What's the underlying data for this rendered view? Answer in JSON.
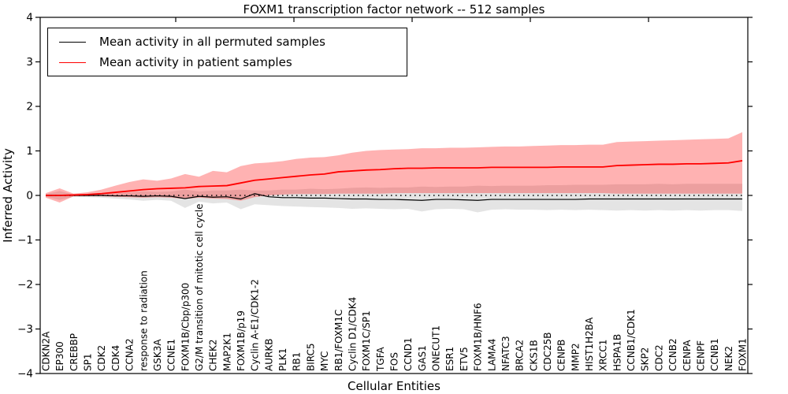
{
  "figure": {
    "title": "FOXM1 transcription factor network -- 512 samples",
    "xlabel": "Cellular Entities",
    "ylabel": "Inferred Activity"
  },
  "legend": {
    "position": "upper left",
    "entries": [
      {
        "label": "Mean activity in all permuted samples",
        "color": "#000000"
      },
      {
        "label": "Mean activity in patient samples",
        "color": "#ff0000"
      }
    ]
  },
  "colors": {
    "patient_line": "#ff0000",
    "permuted_line": "#000000",
    "patient_band": "rgba(255,0,0,0.30)",
    "permuted_band": "rgba(105,105,105,0.18)",
    "reference_dotted": "#000000",
    "axes": "#000000",
    "background": "#ffffff"
  },
  "chart_data": {
    "type": "line",
    "title": "FOXM1 transcription factor network -- 512 samples",
    "xlabel": "Cellular Entities",
    "ylabel": "Inferred Activity",
    "ylim": [
      -4,
      4
    ],
    "yticks": [
      4,
      3,
      2,
      1,
      0,
      -1,
      -2,
      -3,
      -4
    ],
    "ytick_labels": [
      "4",
      "3",
      "2",
      "1",
      "0",
      "−1",
      "−2",
      "−3",
      "−4"
    ],
    "grid": false,
    "legend_position": "upper left",
    "categories": [
      "CDKN2A",
      "EP300",
      "CREBBP",
      "SP1",
      "CDK2",
      "CDK4",
      "CCNA2",
      "response to radiation",
      "GSK3A",
      "CCNE1",
      "FOXM1B/Cbp/p300",
      "G2/M transition of mitotic cell cycle",
      "CHEK2",
      "MAP2K1",
      "FOXM1B/p19",
      "Cyclin A-E1/CDK1-2",
      "AURKB",
      "PLK1",
      "RB1",
      "BIRC5",
      "MYC",
      "RB1/FOXM1C",
      "Cyclin D1/CDK4",
      "FOXM1C/SP1",
      "TGFA",
      "FOS",
      "CCND1",
      "GAS1",
      "ONECUT1",
      "ESR1",
      "ETV5",
      "FOXM1B/HNF6",
      "LAMA4",
      "NFATC3",
      "BRCA2",
      "CKS1B",
      "CDC25B",
      "CENPB",
      "MMP2",
      "HIST1H2BA",
      "XRCC1",
      "HSPA1B",
      "CCNB1/CDK1",
      "SKP2",
      "CDC2",
      "CCNB2",
      "CENPA",
      "CENPF",
      "CCNB1",
      "NEK2",
      "FOXM1"
    ],
    "series": [
      {
        "name": "Mean activity in all permuted samples",
        "kind": "line",
        "color": "#000000",
        "values": [
          0,
          0,
          0,
          0,
          0,
          -0.01,
          -0.01,
          -0.02,
          -0.01,
          -0.02,
          -0.07,
          -0.02,
          -0.04,
          -0.03,
          -0.08,
          0.04,
          -0.03,
          -0.05,
          -0.05,
          -0.06,
          -0.06,
          -0.07,
          -0.08,
          -0.08,
          -0.09,
          -0.09,
          -0.1,
          -0.11,
          -0.09,
          -0.09,
          -0.1,
          -0.11,
          -0.09,
          -0.09,
          -0.09,
          -0.09,
          -0.09,
          -0.09,
          -0.09,
          -0.08,
          -0.08,
          -0.08,
          -0.08,
          -0.08,
          -0.08,
          -0.08,
          -0.08,
          -0.08,
          -0.08,
          -0.08,
          -0.08
        ]
      },
      {
        "name": "Mean activity in patient samples",
        "kind": "line",
        "color": "#ff0000",
        "values": [
          0,
          0,
          0.01,
          0.02,
          0.04,
          0.07,
          0.1,
          0.13,
          0.15,
          0.16,
          0.17,
          0.2,
          0.21,
          0.22,
          0.28,
          0.34,
          0.37,
          0.4,
          0.43,
          0.46,
          0.48,
          0.53,
          0.55,
          0.57,
          0.58,
          0.6,
          0.61,
          0.61,
          0.62,
          0.62,
          0.62,
          0.62,
          0.63,
          0.63,
          0.63,
          0.63,
          0.63,
          0.64,
          0.64,
          0.64,
          0.64,
          0.67,
          0.68,
          0.69,
          0.7,
          0.7,
          0.71,
          0.71,
          0.72,
          0.73,
          0.78
        ]
      },
      {
        "name": "Permuted samples spread band",
        "kind": "band",
        "color": "rgba(105,105,105,0.18)",
        "upper": [
          0.03,
          0.1,
          0.02,
          0.03,
          0.04,
          0.05,
          0.07,
          0.09,
          0.08,
          0.09,
          0.13,
          0.09,
          0.11,
          0.11,
          0.13,
          0.11,
          0.11,
          0.13,
          0.13,
          0.15,
          0.14,
          0.15,
          0.17,
          0.18,
          0.17,
          0.18,
          0.18,
          0.2,
          0.19,
          0.2,
          0.2,
          0.22,
          0.21,
          0.22,
          0.22,
          0.22,
          0.23,
          0.23,
          0.24,
          0.24,
          0.24,
          0.25,
          0.25,
          0.25,
          0.26,
          0.25,
          0.26,
          0.26,
          0.26,
          0.26,
          0.26
        ],
        "lower": [
          -0.03,
          -0.1,
          -0.03,
          -0.04,
          -0.05,
          -0.07,
          -0.09,
          -0.12,
          -0.1,
          -0.12,
          -0.28,
          -0.14,
          -0.18,
          -0.16,
          -0.31,
          -0.2,
          -0.22,
          -0.24,
          -0.25,
          -0.26,
          -0.27,
          -0.28,
          -0.3,
          -0.29,
          -0.3,
          -0.31,
          -0.3,
          -0.36,
          -0.31,
          -0.3,
          -0.31,
          -0.38,
          -0.32,
          -0.31,
          -0.32,
          -0.32,
          -0.33,
          -0.32,
          -0.33,
          -0.32,
          -0.33,
          -0.34,
          -0.33,
          -0.34,
          -0.33,
          -0.34,
          -0.33,
          -0.34,
          -0.33,
          -0.33,
          -0.35
        ]
      },
      {
        "name": "Patient samples spread band",
        "kind": "band",
        "color": "rgba(255,0,0,0.30)",
        "upper": [
          0.05,
          0.16,
          0.04,
          0.07,
          0.13,
          0.22,
          0.3,
          0.36,
          0.33,
          0.38,
          0.48,
          0.42,
          0.55,
          0.52,
          0.66,
          0.72,
          0.74,
          0.77,
          0.82,
          0.85,
          0.86,
          0.9,
          0.96,
          1.0,
          1.02,
          1.03,
          1.04,
          1.06,
          1.06,
          1.07,
          1.07,
          1.08,
          1.09,
          1.1,
          1.1,
          1.11,
          1.12,
          1.13,
          1.13,
          1.14,
          1.14,
          1.2,
          1.21,
          1.22,
          1.23,
          1.24,
          1.25,
          1.26,
          1.27,
          1.28,
          1.42
        ],
        "lower": [
          -0.05,
          -0.16,
          -0.02,
          -0.02,
          -0.02,
          -0.03,
          -0.04,
          -0.05,
          -0.04,
          -0.05,
          -0.08,
          -0.05,
          -0.07,
          -0.08,
          -0.12,
          -0.04,
          0,
          0.02,
          0.03,
          0.03,
          0.03,
          0.04,
          0.04,
          0.04,
          0.04,
          0.05,
          0.05,
          0.05,
          0.05,
          0.05,
          0.05,
          0.05,
          0.05,
          0.05,
          0.05,
          0.05,
          0.05,
          0.05,
          0.05,
          0.05,
          0.05,
          0.04,
          0.04,
          0.04,
          0.04,
          0.04,
          0.04,
          0.04,
          0.04,
          0.04,
          0.04
        ]
      },
      {
        "name": "Zero reference",
        "kind": "dotted",
        "color": "#000000",
        "value": 0.0
      }
    ]
  }
}
